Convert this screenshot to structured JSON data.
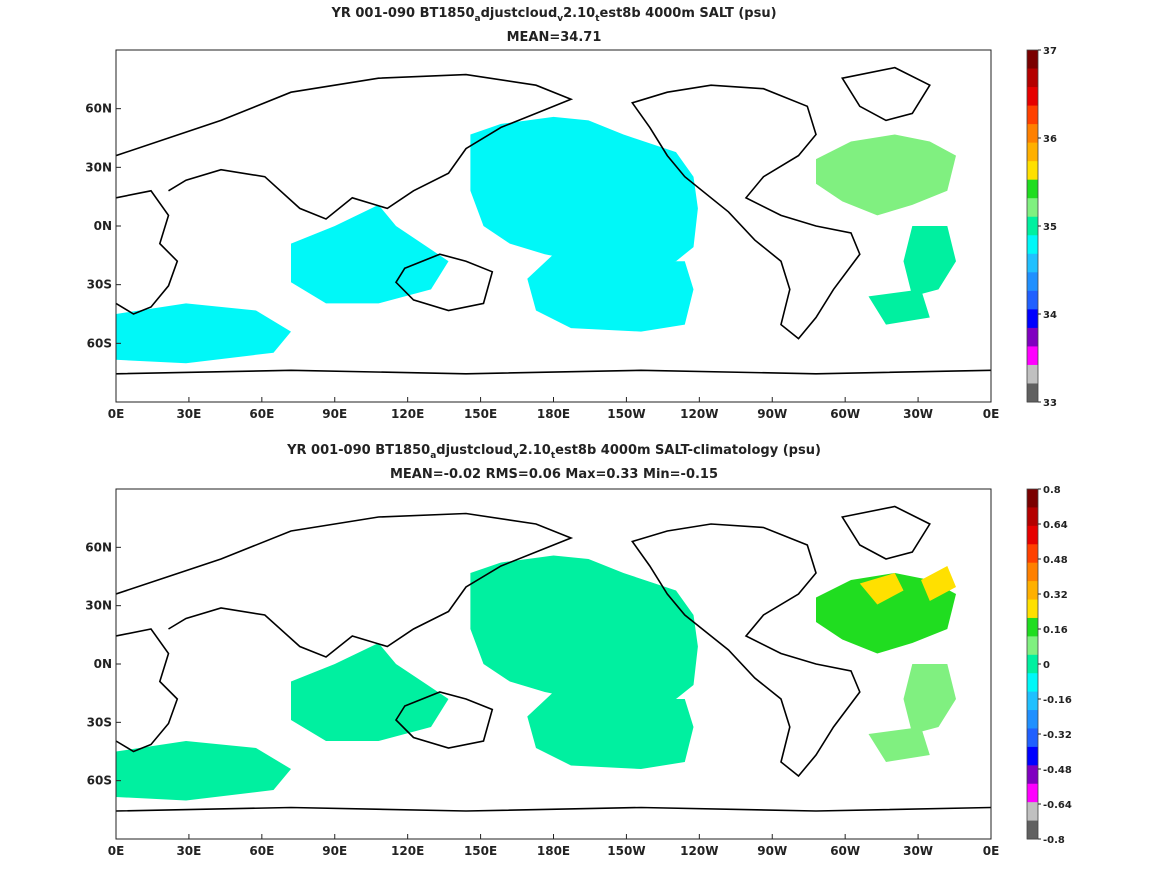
{
  "panels": [
    {
      "title_parts": [
        "YR 001-090 BT1850",
        "a",
        "djustcloud",
        "v",
        "2.10",
        "t",
        "est8b 4000m SALT (psu)"
      ],
      "stats": "MEAN=34.71",
      "colorbar": {
        "labels": [
          "37",
          "36",
          "35",
          "34",
          "33"
        ],
        "colors": [
          "#7a0000",
          "#b40000",
          "#e60000",
          "#ff4000",
          "#ff8000",
          "#ffb000",
          "#ffe000",
          "#20dd20",
          "#80f080",
          "#00f0a0",
          "#00f8f8",
          "#20c0ff",
          "#2090ff",
          "#2060ff",
          "#0000ff",
          "#8000c0",
          "#ff00ff",
          "#c0c0c0",
          "#606060"
        ]
      },
      "fields": [
        {
          "name": "north-pacific",
          "color": "#00f8f8"
        },
        {
          "name": "south-pacific",
          "color": "#00f8f8"
        },
        {
          "name": "indian-ocean",
          "color": "#00f8f8"
        },
        {
          "name": "southern-indian",
          "color": "#00f8f8"
        },
        {
          "name": "north-atlantic",
          "color": "#80f080"
        },
        {
          "name": "south-atlantic",
          "color": "#00f0a0"
        }
      ]
    },
    {
      "title_parts": [
        "YR 001-090 BT1850",
        "a",
        "djustcloud",
        "v",
        "2.10",
        "t",
        "est8b 4000m SALT-climatology (psu)"
      ],
      "stats": "MEAN=-0.02   RMS=0.06   Max=0.33   Min=-0.15",
      "colorbar": {
        "labels": [
          "0.8",
          "0.64",
          "0.48",
          "0.32",
          "0.16",
          "0",
          "-0.16",
          "-0.32",
          "-0.48",
          "-0.64",
          "-0.8"
        ],
        "colors": [
          "#7a0000",
          "#b40000",
          "#e60000",
          "#ff4000",
          "#ff8000",
          "#ffb000",
          "#ffe000",
          "#20dd20",
          "#80f080",
          "#00f0a0",
          "#00f8f8",
          "#20c0ff",
          "#2090ff",
          "#2060ff",
          "#0000ff",
          "#8000c0",
          "#ff00ff",
          "#c0c0c0",
          "#606060"
        ]
      },
      "fields": [
        {
          "name": "north-pacific",
          "color": "#00f0a0"
        },
        {
          "name": "south-pacific",
          "color": "#00f0a0"
        },
        {
          "name": "indian-ocean",
          "color": "#00f0a0"
        },
        {
          "name": "southern-indian",
          "color": "#00f0a0"
        },
        {
          "name": "north-atlantic",
          "color": "#20dd20"
        },
        {
          "name": "north-atlantic-max",
          "color": "#ffe000"
        },
        {
          "name": "south-atlantic",
          "color": "#80f080"
        }
      ]
    }
  ],
  "x_ticks": [
    "0E",
    "30E",
    "60E",
    "90E",
    "120E",
    "150E",
    "180E",
    "150W",
    "120W",
    "90W",
    "60W",
    "30W",
    "0E"
  ],
  "y_ticks": [
    "60N",
    "30N",
    "0N",
    "30S",
    "60S"
  ]
}
